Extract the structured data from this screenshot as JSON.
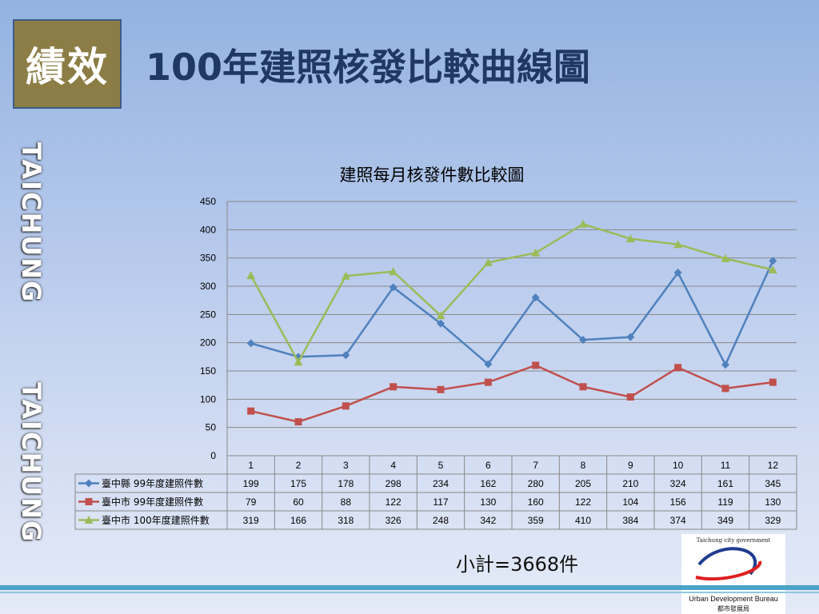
{
  "badge": "績效",
  "title": "100年建照核發比較曲線圖",
  "side_text": [
    "TAICHUNG",
    "TAICHUNG"
  ],
  "subtotal": "小計=3668件",
  "logo": {
    "top_text": "Taichung city government",
    "en": "Urban Development Bureau",
    "zh": "都市發展局"
  },
  "colors": {
    "series1": "#4f81bd",
    "series2": "#c0504d",
    "series3": "#9bbb59"
  },
  "chart_data": {
    "type": "line",
    "title": "建照每月核發件數比較圖",
    "categories": [
      "1",
      "2",
      "3",
      "4",
      "5",
      "6",
      "7",
      "8",
      "9",
      "10",
      "11",
      "12"
    ],
    "ylim": [
      0,
      450
    ],
    "yticks": [
      0,
      50,
      100,
      150,
      200,
      250,
      300,
      350,
      400,
      450
    ],
    "grid": true,
    "legend": "data-table",
    "series": [
      {
        "name": "臺中縣 99年度建照件數",
        "marker": "diamond",
        "values": [
          199,
          175,
          178,
          298,
          234,
          162,
          280,
          205,
          210,
          324,
          161,
          345
        ]
      },
      {
        "name": "臺中市 99年度建照件數",
        "marker": "square",
        "values": [
          79,
          60,
          88,
          122,
          117,
          130,
          160,
          122,
          104,
          156,
          119,
          130
        ]
      },
      {
        "name": "臺中市 100年度建照件數",
        "marker": "triangle",
        "values": [
          319,
          166,
          318,
          326,
          248,
          342,
          359,
          410,
          384,
          374,
          349,
          329
        ]
      }
    ]
  }
}
